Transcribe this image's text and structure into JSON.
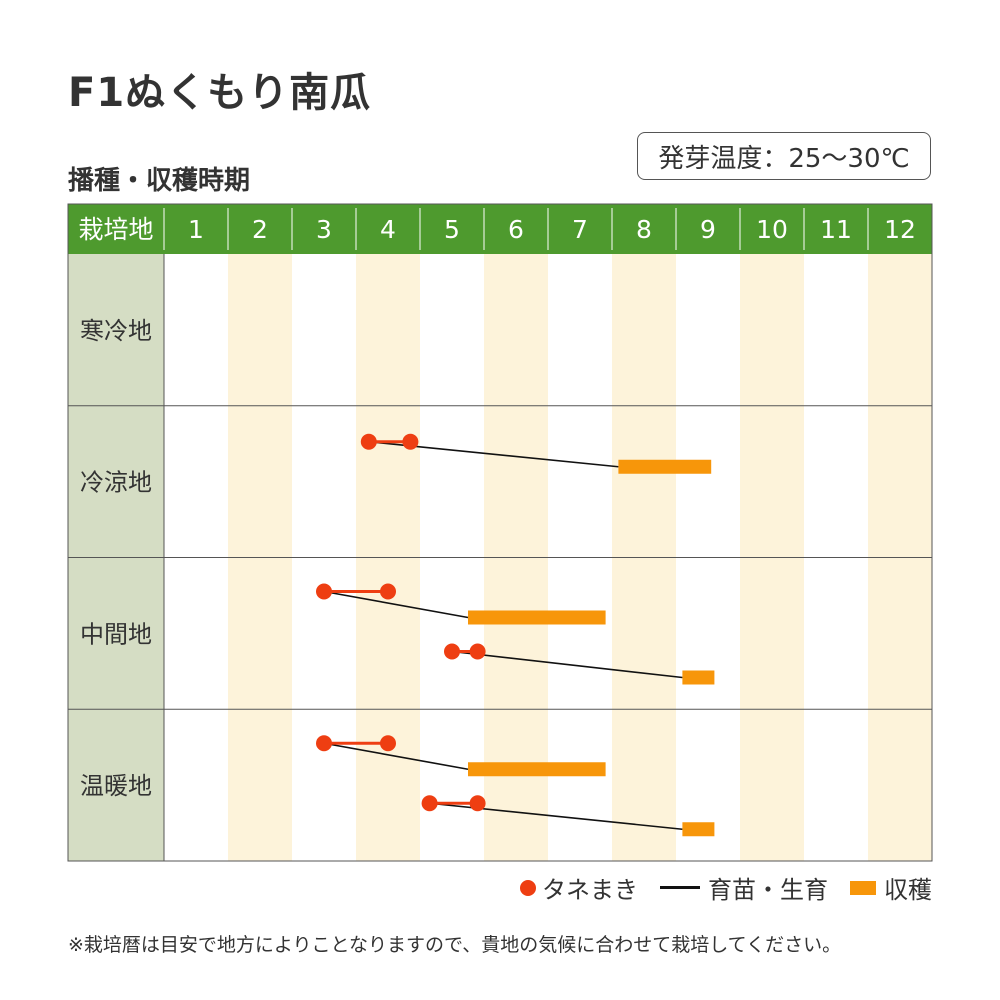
{
  "title": "F1ぬくもり南瓜",
  "subtitle": "播種・収穫時期",
  "germination_temp": "発芽温度：25〜30℃",
  "legend": {
    "sowing": "タネまき",
    "seedling": "育苗・生育",
    "harvest": "収穫"
  },
  "note": "※栽培暦は目安で地方によりことなりますので、貴地の気候に合わせて栽培してください。",
  "colors": {
    "header_green": "#4e9a2e",
    "region_bg": "#d5ddc4",
    "stripe": "#fdf3da",
    "sowing": "#ee3e12",
    "harvest": "#f7960a",
    "line": "#111111"
  },
  "chart_data": {
    "type": "table",
    "corner_label": "栽培地",
    "months": [
      "1",
      "2",
      "3",
      "4",
      "5",
      "6",
      "7",
      "8",
      "9",
      "10",
      "11",
      "12"
    ],
    "regions": [
      {
        "name": "寒冷地",
        "schedules": []
      },
      {
        "name": "冷涼地",
        "schedules": [
          {
            "sowing": [
              4.2,
              4.85
            ],
            "growth_end": 8.1,
            "harvest": [
              8.1,
              9.55
            ]
          }
        ]
      },
      {
        "name": "中間地",
        "schedules": [
          {
            "sowing": [
              3.5,
              4.5
            ],
            "growth_end": 5.75,
            "harvest": [
              5.75,
              7.9
            ]
          },
          {
            "sowing": [
              5.5,
              5.9
            ],
            "growth_end": 9.1,
            "harvest": [
              9.1,
              9.6
            ]
          }
        ]
      },
      {
        "name": "温暖地",
        "schedules": [
          {
            "sowing": [
              3.5,
              4.5
            ],
            "growth_end": 5.75,
            "harvest": [
              5.75,
              7.9
            ]
          },
          {
            "sowing": [
              5.15,
              5.9
            ],
            "growth_end": 9.1,
            "harvest": [
              9.1,
              9.6
            ]
          }
        ]
      }
    ]
  }
}
